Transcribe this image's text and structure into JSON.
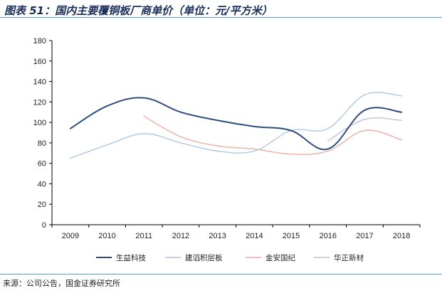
{
  "header": {
    "title": "图表 51：国内主要覆铜板厂商单价（单位：元/平方米）"
  },
  "footer": {
    "source": "来源：公司公告，国金证券研究所"
  },
  "chart_data": {
    "type": "line",
    "title": "图表 51：国内主要覆铜板厂商单价（单位：元/平方米）",
    "xlabel": "",
    "ylabel": "",
    "ylim": [
      0,
      180
    ],
    "yticks": [
      0,
      20,
      40,
      60,
      80,
      100,
      120,
      140,
      160,
      180
    ],
    "categories": [
      "2009",
      "2010",
      "2011",
      "2012",
      "2013",
      "2014",
      "2015",
      "2016",
      "2017",
      "2018"
    ],
    "legend_position": "bottom",
    "grid": false,
    "series": [
      {
        "name": "生益科技",
        "color": "#2e4d7b",
        "values": [
          94,
          116,
          124,
          110,
          102,
          96,
          92,
          74,
          112,
          110
        ]
      },
      {
        "name": "建滔积层板",
        "color": "#b8cde4",
        "values": [
          65,
          78,
          89,
          80,
          72,
          72,
          92,
          94,
          127,
          126
        ]
      },
      {
        "name": "金安国纪",
        "color": "#eab8b0",
        "values": [
          null,
          null,
          106,
          86,
          77,
          74,
          69,
          72,
          92,
          83
        ]
      },
      {
        "name": "华正新材",
        "color": "#cdc7dc",
        "values": [
          null,
          null,
          null,
          null,
          null,
          null,
          null,
          82,
          103,
          102
        ]
      }
    ]
  }
}
